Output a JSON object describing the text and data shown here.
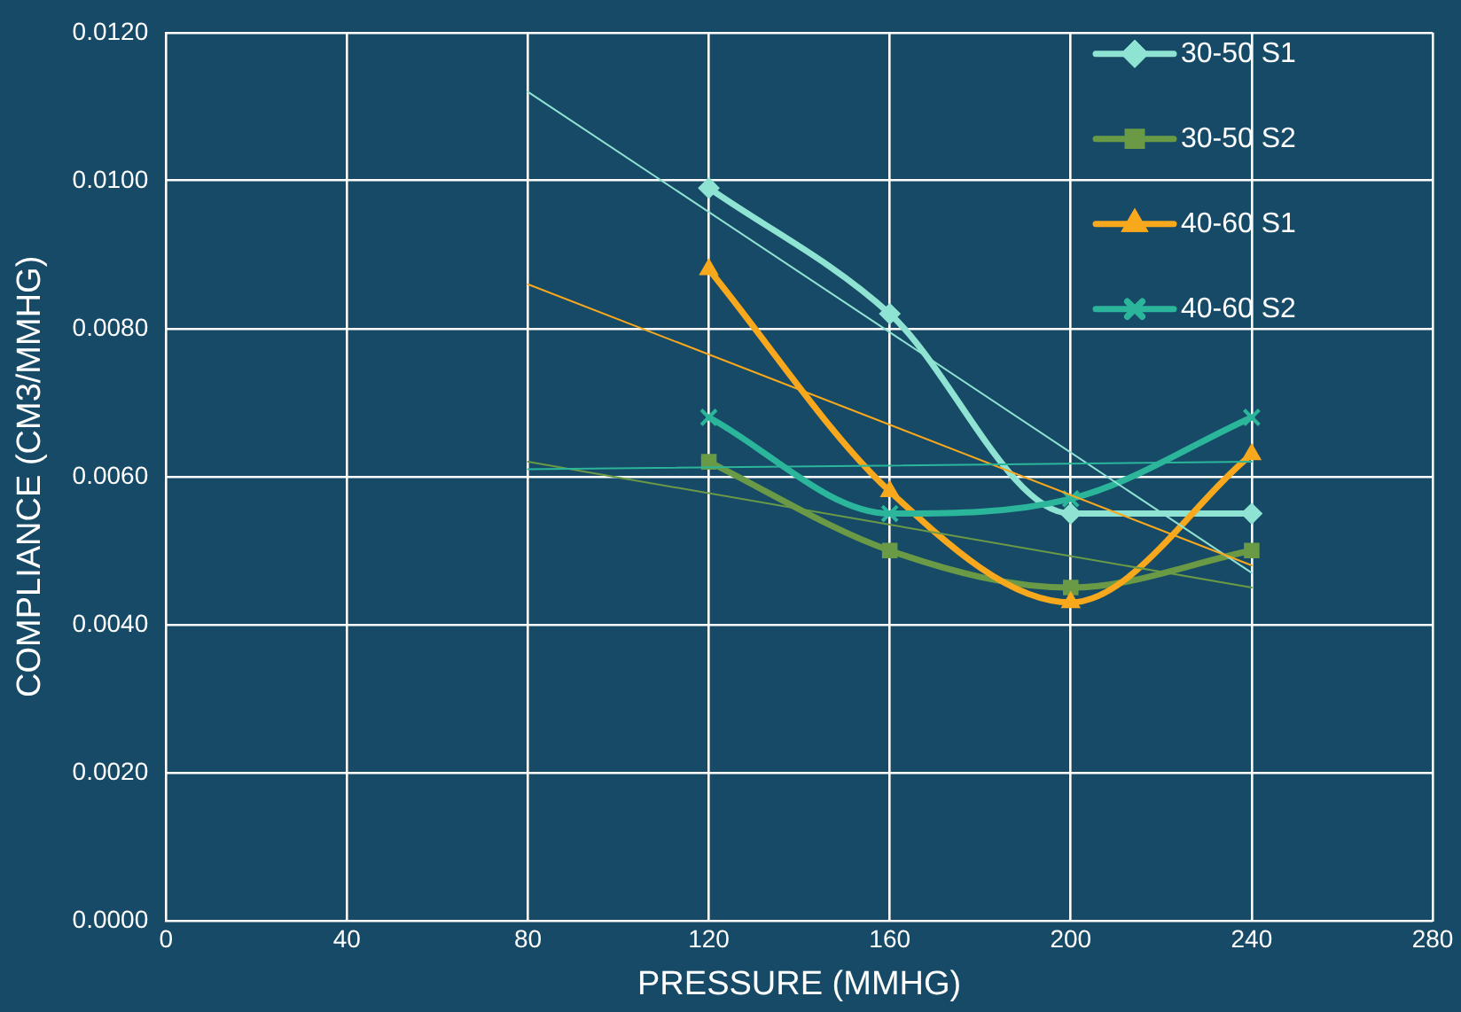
{
  "chart_data": {
    "type": "line",
    "xlabel": "PRESSURE (MMHG)",
    "ylabel": "COMPLIANCE (CM3/MMHG)",
    "xlim": [
      0,
      280
    ],
    "xticks": [
      0,
      40,
      80,
      120,
      160,
      200,
      240,
      280
    ],
    "ylim": [
      0,
      0.012
    ],
    "yticks": [
      {
        "value": 0,
        "label": "0.0000"
      },
      {
        "value": 0.002,
        "label": "0.0020"
      },
      {
        "value": 0.004,
        "label": "0.0040"
      },
      {
        "value": 0.006,
        "label": "0.0060"
      },
      {
        "value": 0.008,
        "label": "0.0080"
      },
      {
        "value": 0.01,
        "label": "0.0100"
      },
      {
        "value": 0.012,
        "label": "0.0120"
      }
    ],
    "grid": true,
    "legend": "top right",
    "series": [
      {
        "name": "30-50 S1",
        "color": "#8fe3d3",
        "marker": "diamond",
        "x": [
          120,
          160,
          200,
          240
        ],
        "values": [
          0.0099,
          0.0082,
          0.0055,
          0.0055
        ]
      },
      {
        "name": "30-50 S2",
        "color": "#6a9a45",
        "marker": "square",
        "x": [
          120,
          160,
          200,
          240
        ],
        "values": [
          0.0062,
          0.005,
          0.0045,
          0.005
        ]
      },
      {
        "name": "40-60 S1",
        "color": "#f8a81c",
        "marker": "triangle",
        "x": [
          120,
          160,
          200,
          240
        ],
        "values": [
          0.0088,
          0.0058,
          0.0043,
          0.0063
        ]
      },
      {
        "name": "40-60 S2",
        "color": "#2bb59a",
        "marker": "cross",
        "x": [
          120,
          160,
          200,
          240
        ],
        "values": [
          0.0068,
          0.0055,
          0.0057,
          0.0068
        ]
      },
      {
        "color": "#8fe3d3",
        "marker": "none",
        "x": [
          80,
          240
        ],
        "values": [
          0.0112,
          0.0047
        ]
      },
      {
        "color": "#6a9a45",
        "marker": "none",
        "x": [
          80,
          240
        ],
        "values": [
          0.0062,
          0.0045
        ]
      },
      {
        "color": "#f8a81c",
        "marker": "none",
        "x": [
          80,
          240
        ],
        "values": [
          0.0086,
          0.0048
        ]
      },
      {
        "color": "#2bb59a",
        "marker": "none",
        "x": [
          80,
          240
        ],
        "values": [
          0.0061,
          0.0062
        ]
      }
    ]
  }
}
